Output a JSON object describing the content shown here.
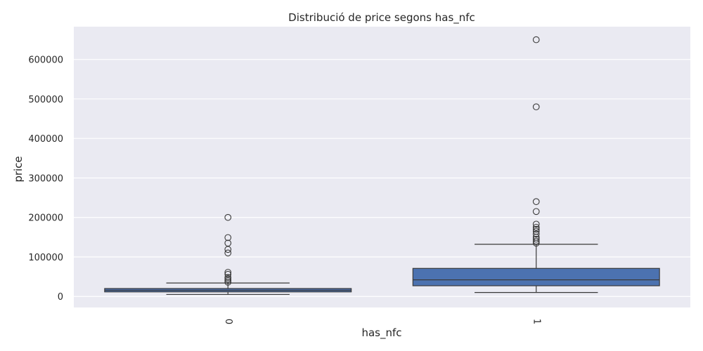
{
  "chart_data": {
    "type": "box",
    "title": "Distribució de price segons has_nfc",
    "xlabel": "has_nfc",
    "ylabel": "price",
    "categories": [
      "0",
      "1"
    ],
    "ylim": [
      -28000,
      683000
    ],
    "yticks": [
      0,
      100000,
      200000,
      300000,
      400000,
      500000,
      600000
    ],
    "ytick_labels": [
      "0",
      "100000",
      "200000",
      "300000",
      "400000",
      "500000",
      "600000"
    ],
    "grid": true,
    "boxes": [
      {
        "category": "0",
        "whisker_low": 5000,
        "q1": 11500,
        "median": 15500,
        "q3": 20000,
        "whisker_high": 34000,
        "outliers": [
          36000,
          40000,
          44000,
          48000,
          56000,
          61000,
          110000,
          119000,
          135000,
          149000,
          200000
        ]
      },
      {
        "category": "1",
        "whisker_low": 10000,
        "q1": 27000,
        "median": 42000,
        "q3": 71000,
        "whisker_high": 132000,
        "outliers": [
          135000,
          140000,
          145000,
          150000,
          158000,
          165000,
          170000,
          175000,
          183000,
          215000,
          240000,
          480000,
          650000
        ]
      }
    ],
    "colors": {
      "box_fill": "#4c72b0",
      "plot_bg": "#eaeaf2",
      "grid": "#ffffff",
      "line": "#3a3a3a"
    }
  }
}
